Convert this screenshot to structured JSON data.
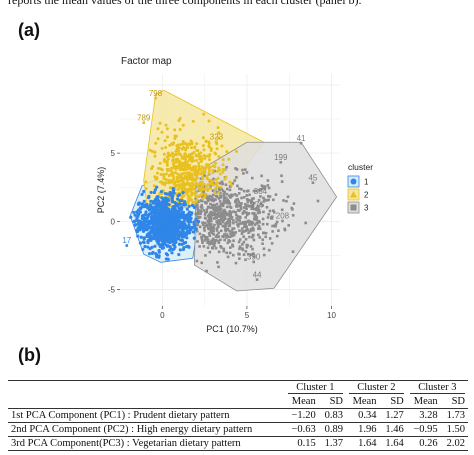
{
  "caption_fragment": "reports the mean values of the three components in each cluster (panel b).",
  "panel_a_label": "(a)",
  "panel_b_label": "(b)",
  "chart_data": {
    "type": "scatter",
    "title": "Factor map",
    "xlabel": "PC1 (10.7%)",
    "ylabel": "PC2 (7.4%)",
    "xlim": [
      -2.5,
      10.5
    ],
    "ylim": [
      -6.2,
      10.8
    ],
    "x_ticks": [
      0,
      5,
      10
    ],
    "y_ticks": [
      -5,
      0,
      5
    ],
    "grid": true,
    "legend_title": "cluster",
    "legend_position": "right",
    "series": [
      {
        "name": "1",
        "color": "#2f86e8",
        "hull_fill": "#d7ecf8",
        "hull": [
          [
            -1.9,
            0.4
          ],
          [
            -1.2,
            2.6
          ],
          [
            -0.5,
            3.0
          ],
          [
            1.4,
            2.5
          ],
          [
            2.2,
            0.4
          ],
          [
            1.8,
            -2.7
          ],
          [
            -0.1,
            -3.0
          ],
          [
            -1.1,
            -2.4
          ]
        ],
        "labels": [
          {
            "text": "17",
            "x": -2.1,
            "y": -1.6
          }
        ]
      },
      {
        "name": "2",
        "color": "#e8c020",
        "hull_fill": "#f6e6a0",
        "hull": [
          [
            -1.1,
            3.0
          ],
          [
            -0.4,
            9.3
          ],
          [
            0.1,
            9.6
          ],
          [
            6.0,
            5.8
          ],
          [
            4.0,
            2.4
          ],
          [
            1.4,
            1.0
          ],
          [
            -0.9,
            1.2
          ]
        ],
        "labels": [
          {
            "text": "798",
            "x": -0.4,
            "y": 9.2
          },
          {
            "text": "789",
            "x": -1.1,
            "y": 7.4
          },
          {
            "text": "323",
            "x": 3.2,
            "y": 6.0
          }
        ]
      },
      {
        "name": "3",
        "color": "#8c8c8c",
        "hull_fill": "#dedede",
        "hull": [
          [
            2.0,
            3.6
          ],
          [
            5.0,
            5.8
          ],
          [
            8.2,
            5.8
          ],
          [
            10.3,
            1.8
          ],
          [
            6.6,
            -4.9
          ],
          [
            4.4,
            -5.1
          ],
          [
            1.9,
            -3.2
          ]
        ],
        "labels": [
          {
            "text": "41",
            "x": 8.2,
            "y": 5.9
          },
          {
            "text": "199",
            "x": 7.0,
            "y": 4.5
          },
          {
            "text": "45",
            "x": 8.9,
            "y": 3.0
          },
          {
            "text": "376",
            "x": 5.6,
            "y": 1.0
          },
          {
            "text": "208",
            "x": 7.1,
            "y": 0.2
          },
          {
            "text": "384",
            "x": 5.8,
            "y": 2.0
          },
          {
            "text": "390",
            "x": 5.4,
            "y": -2.8
          },
          {
            "text": "44",
            "x": 5.6,
            "y": -4.1
          }
        ]
      }
    ]
  },
  "table": {
    "cluster_headers": [
      "Cluster 1",
      "Cluster 2",
      "Cluster 3"
    ],
    "sub_headers": [
      "Mean",
      "SD",
      "Mean",
      "SD",
      "Mean",
      "SD"
    ],
    "rows": [
      {
        "label": "1st PCA Component (PC1) : Prudent dietary pattern",
        "values": [
          "−1.20",
          "0.83",
          "0.34",
          "1.27",
          "3.28",
          "1.73"
        ]
      },
      {
        "label": "2nd PCA Component (PC2) : High energy dietary pattern",
        "values": [
          "−0.63",
          "0.89",
          "1.96",
          "1.46",
          "−0.95",
          "1.50"
        ]
      },
      {
        "label": "3rd PCA Component(PC3) : Vegetarian dietary pattern",
        "values": [
          "0.15",
          "1.37",
          "1.64",
          "1.64",
          "0.26",
          "2.02"
        ]
      }
    ]
  }
}
